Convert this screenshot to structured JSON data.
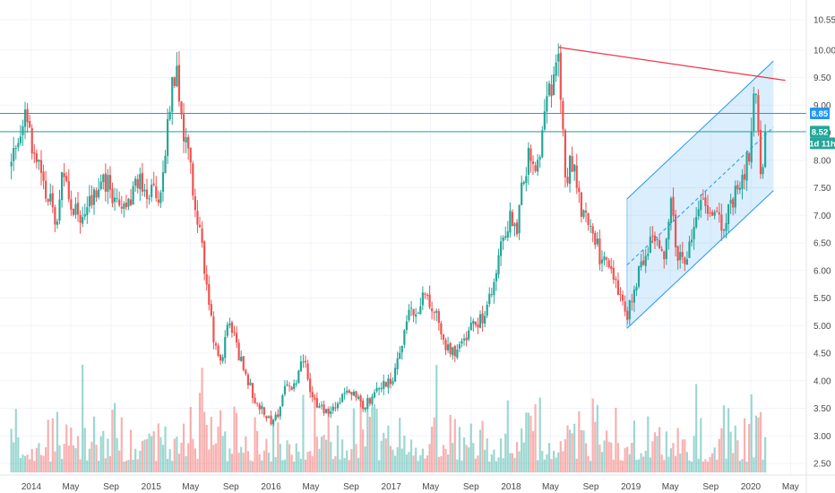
{
  "chart_data": {
    "type": "candlestick",
    "yticks": [
      "10.55",
      "10.00",
      "9.50",
      "9.00",
      "8.50",
      "8.00",
      "7.50",
      "7.00",
      "6.50",
      "6.00",
      "5.50",
      "5.00",
      "4.50",
      "4.00",
      "3.50",
      "3.00",
      "2.50"
    ],
    "xticks": [
      "2014",
      "May",
      "Sep",
      "2015",
      "May",
      "Sep",
      "2016",
      "May",
      "Sep",
      "2017",
      "May",
      "Sep",
      "2018",
      "May",
      "Sep",
      "2019",
      "May",
      "Sep",
      "2020",
      "May"
    ],
    "ylim": [
      2.4,
      10.8
    ],
    "grid": true,
    "current_price_label": "8.52",
    "resistance_label": "8.85",
    "countdown_label": "1d 11h",
    "colors": {
      "up": "#26a69a",
      "down": "#ef5350",
      "channel": "#2196f3",
      "trendline": "#f23645",
      "hline": "#2196f3",
      "hline2": "#26a69a"
    },
    "price_anchors": [
      [
        "2013-11-01",
        7.9
      ],
      [
        "2013-12-20",
        8.9
      ],
      [
        "2014-01-10",
        8.1
      ],
      [
        "2014-02-20",
        7.3
      ],
      [
        "2014-03-20",
        6.9
      ],
      [
        "2014-04-10",
        7.9
      ],
      [
        "2014-05-01",
        7.2
      ],
      [
        "2014-06-10",
        7.0
      ],
      [
        "2014-07-20",
        7.5
      ],
      [
        "2014-08-10",
        7.7
      ],
      [
        "2014-09-10",
        7.3
      ],
      [
        "2014-10-10",
        7.1
      ],
      [
        "2014-11-20",
        7.6
      ],
      [
        "2014-12-20",
        7.5
      ],
      [
        "2015-01-20",
        7.3
      ],
      [
        "2015-02-10",
        7.8
      ],
      [
        "2015-03-01",
        9.3
      ],
      [
        "2015-03-20",
        9.5
      ],
      [
        "2015-04-10",
        8.5
      ],
      [
        "2015-05-01",
        7.8
      ],
      [
        "2015-05-20",
        7.0
      ],
      [
        "2015-06-15",
        6.0
      ],
      [
        "2015-07-10",
        4.7
      ],
      [
        "2015-08-01",
        4.3
      ],
      [
        "2015-08-25",
        5.0
      ],
      [
        "2015-09-20",
        4.6
      ],
      [
        "2015-10-20",
        4.0
      ],
      [
        "2015-11-20",
        3.6
      ],
      [
        "2015-12-20",
        3.4
      ],
      [
        "2016-01-10",
        3.2
      ],
      [
        "2016-02-10",
        3.8
      ],
      [
        "2016-03-10",
        3.9
      ],
      [
        "2016-04-10",
        4.4
      ],
      [
        "2016-05-01",
        3.7
      ],
      [
        "2016-06-10",
        3.5
      ],
      [
        "2016-07-10",
        3.5
      ],
      [
        "2016-08-10",
        3.7
      ],
      [
        "2016-09-10",
        3.8
      ],
      [
        "2016-10-10",
        3.5
      ],
      [
        "2016-11-10",
        3.8
      ],
      [
        "2016-12-10",
        4.0
      ],
      [
        "2017-01-01",
        4.0
      ],
      [
        "2017-02-01",
        4.6
      ],
      [
        "2017-03-01",
        5.3
      ],
      [
        "2017-04-01",
        5.4
      ],
      [
        "2017-04-20",
        5.6
      ],
      [
        "2017-05-10",
        5.3
      ],
      [
        "2017-06-10",
        4.7
      ],
      [
        "2017-07-10",
        4.5
      ],
      [
        "2017-08-10",
        4.7
      ],
      [
        "2017-09-10",
        5.0
      ],
      [
        "2017-10-10",
        5.1
      ],
      [
        "2017-11-10",
        5.8
      ],
      [
        "2017-12-10",
        6.7
      ],
      [
        "2018-01-01",
        7.0
      ],
      [
        "2018-01-20",
        6.8
      ],
      [
        "2018-02-10",
        7.8
      ],
      [
        "2018-03-01",
        8.2
      ],
      [
        "2018-03-20",
        7.6
      ],
      [
        "2018-04-10",
        9.0
      ],
      [
        "2018-05-01",
        9.5
      ],
      [
        "2018-05-10",
        9.3
      ],
      [
        "2018-05-25",
        9.8
      ],
      [
        "2018-06-15",
        7.6
      ],
      [
        "2018-07-05",
        8.0
      ],
      [
        "2018-08-01",
        7.2
      ],
      [
        "2018-09-01",
        6.8
      ],
      [
        "2018-10-01",
        6.2
      ],
      [
        "2018-11-01",
        6.0
      ],
      [
        "2018-12-01",
        5.4
      ],
      [
        "2018-12-20",
        5.2
      ],
      [
        "2019-01-10",
        5.6
      ],
      [
        "2019-02-10",
        6.3
      ],
      [
        "2019-03-10",
        6.6
      ],
      [
        "2019-04-10",
        6.2
      ],
      [
        "2019-05-01",
        7.3
      ],
      [
        "2019-05-25",
        6.2
      ],
      [
        "2019-06-10",
        6.1
      ],
      [
        "2019-07-10",
        6.8
      ],
      [
        "2019-08-10",
        7.2
      ],
      [
        "2019-09-10",
        7.0
      ],
      [
        "2019-10-10",
        6.8
      ],
      [
        "2019-11-10",
        7.3
      ],
      [
        "2019-12-10",
        7.6
      ],
      [
        "2020-01-01",
        8.3
      ],
      [
        "2020-01-12",
        9.3
      ],
      [
        "2020-01-22",
        8.6
      ],
      [
        "2020-02-01",
        7.6
      ],
      [
        "2020-02-10",
        8.0
      ],
      [
        "2020-02-18",
        8.52
      ]
    ],
    "channel": {
      "lower_start": [
        "2018-12-20",
        4.95
      ],
      "lower_end": [
        "2020-03-10",
        7.45
      ],
      "upper_start": [
        "2018-12-20",
        7.3
      ],
      "upper_end": [
        "2020-03-10",
        9.8
      ],
      "mid_start": [
        "2018-12-20",
        6.1
      ],
      "mid_end": [
        "2020-03-10",
        8.6
      ]
    },
    "trendline": {
      "start": [
        "2018-05-25",
        10.05
      ],
      "end": [
        "2020-04-15",
        9.45
      ]
    },
    "hlines": [
      {
        "value": 8.85,
        "label": "8.85"
      },
      {
        "value": 8.52,
        "label": "8.52"
      }
    ],
    "volume_scale_max": 4.8
  }
}
